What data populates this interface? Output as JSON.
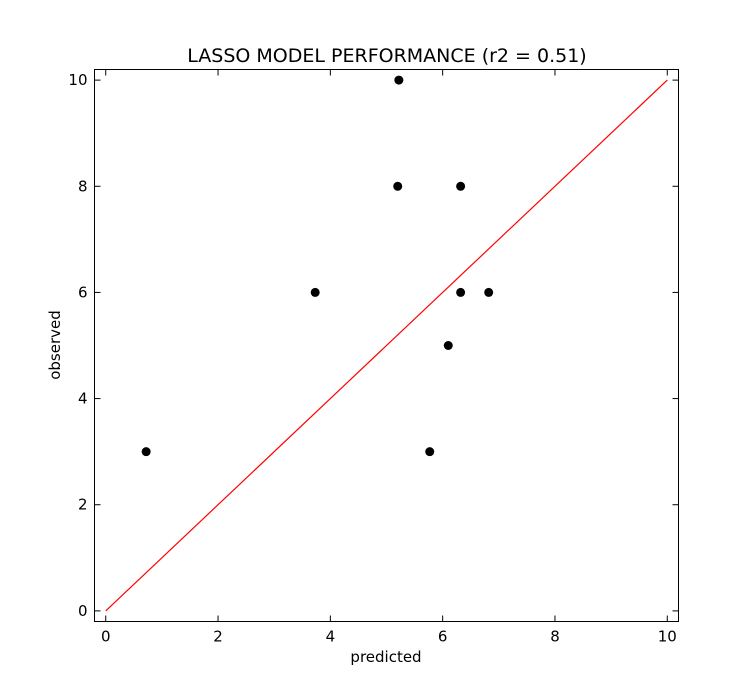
{
  "chart_data": {
    "type": "scatter",
    "title": "LASSO MODEL PERFORMANCE (r2 = 0.51)",
    "xlabel": "predicted",
    "ylabel": "observed",
    "xlim": [
      -0.2,
      10.2
    ],
    "ylim": [
      -0.2,
      10.2
    ],
    "xticks": [
      0,
      2,
      4,
      6,
      8,
      10
    ],
    "yticks": [
      0,
      2,
      4,
      6,
      8,
      10
    ],
    "grid": false,
    "points": [
      {
        "x": 0.72,
        "y": 3
      },
      {
        "x": 3.73,
        "y": 6
      },
      {
        "x": 5.2,
        "y": 8
      },
      {
        "x": 5.22,
        "y": 10
      },
      {
        "x": 5.77,
        "y": 3
      },
      {
        "x": 6.1,
        "y": 5
      },
      {
        "x": 6.32,
        "y": 6
      },
      {
        "x": 6.32,
        "y": 8
      },
      {
        "x": 6.82,
        "y": 6
      }
    ],
    "reference_line": {
      "x": [
        0,
        10
      ],
      "y": [
        0,
        10
      ],
      "color": "#ff0000"
    },
    "marker_color": "#000000"
  }
}
